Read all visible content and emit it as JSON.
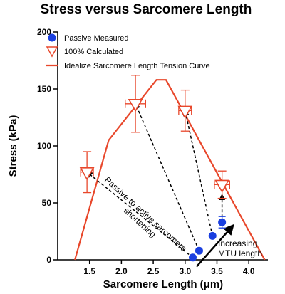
{
  "chart_data": {
    "type": "line",
    "title": "Stress versus Sarcomere Length",
    "xlabel": "Sarcomere Length (μm)",
    "ylabel": "Stress (kPa)",
    "xlim": [
      1.0,
      4.3
    ],
    "ylim": [
      0,
      200
    ],
    "x_ticks": [
      1.5,
      2.0,
      2.5,
      3.0,
      3.5,
      4.0
    ],
    "x_tick_labels": [
      "1.5",
      "2.0",
      "2.5",
      "3.0",
      "3.5",
      "4.0"
    ],
    "y_ticks": [
      0,
      50,
      100,
      150,
      200
    ],
    "y_tick_labels": [
      "0",
      "50",
      "100",
      "150",
      "200"
    ],
    "grid": false,
    "legend_position": "top-left",
    "series": [
      {
        "name": "Passive Measured",
        "kind": "scatter",
        "marker": "filled-circle",
        "color": "#1a3fe0",
        "points": [
          {
            "x": 3.12,
            "y": 2,
            "ey": 0
          },
          {
            "x": 3.22,
            "y": 8,
            "ey": 0
          },
          {
            "x": 3.43,
            "y": 21,
            "ey": 0
          },
          {
            "x": 3.58,
            "y": 33,
            "ey": 5
          }
        ]
      },
      {
        "name": "100% Calculated",
        "kind": "scatter",
        "marker": "open-triangle-down",
        "color": "#e8472b",
        "points": [
          {
            "x": 1.46,
            "y": 77,
            "ex": 0.1,
            "ey": 18
          },
          {
            "x": 2.22,
            "y": 137,
            "ex": 0.16,
            "ey": 25
          },
          {
            "x": 3.0,
            "y": 131,
            "ex": 0.1,
            "ey": 18
          },
          {
            "x": 3.58,
            "y": 66,
            "ex": 0.12,
            "ey": 12
          }
        ]
      },
      {
        "name": "Idealize Sarcomere Length Tension Curve",
        "kind": "line",
        "color": "#e8472b",
        "x": [
          1.27,
          1.8,
          2.55,
          2.7,
          4.25
        ],
        "y": [
          0,
          105,
          158,
          158,
          0
        ]
      }
    ],
    "dashed_arrows": [
      {
        "from": [
          3.12,
          2
        ],
        "to": [
          1.46,
          77
        ]
      },
      {
        "from": [
          3.22,
          8
        ],
        "to": [
          2.22,
          137
        ]
      },
      {
        "from": [
          3.43,
          21
        ],
        "to": [
          3.0,
          131
        ]
      },
      {
        "from": [
          3.58,
          33
        ],
        "to": [
          3.58,
          57
        ]
      }
    ],
    "solid_arrow": {
      "from": [
        3.18,
        -6
      ],
      "to": [
        3.75,
        30
      ]
    },
    "annotations": [
      {
        "id": "passive-to-active",
        "lines": [
          "Passive to active sarcomere",
          "shortening"
        ]
      },
      {
        "id": "increasing-mtu",
        "lines": [
          "Increasing",
          "MTU length"
        ]
      }
    ]
  }
}
